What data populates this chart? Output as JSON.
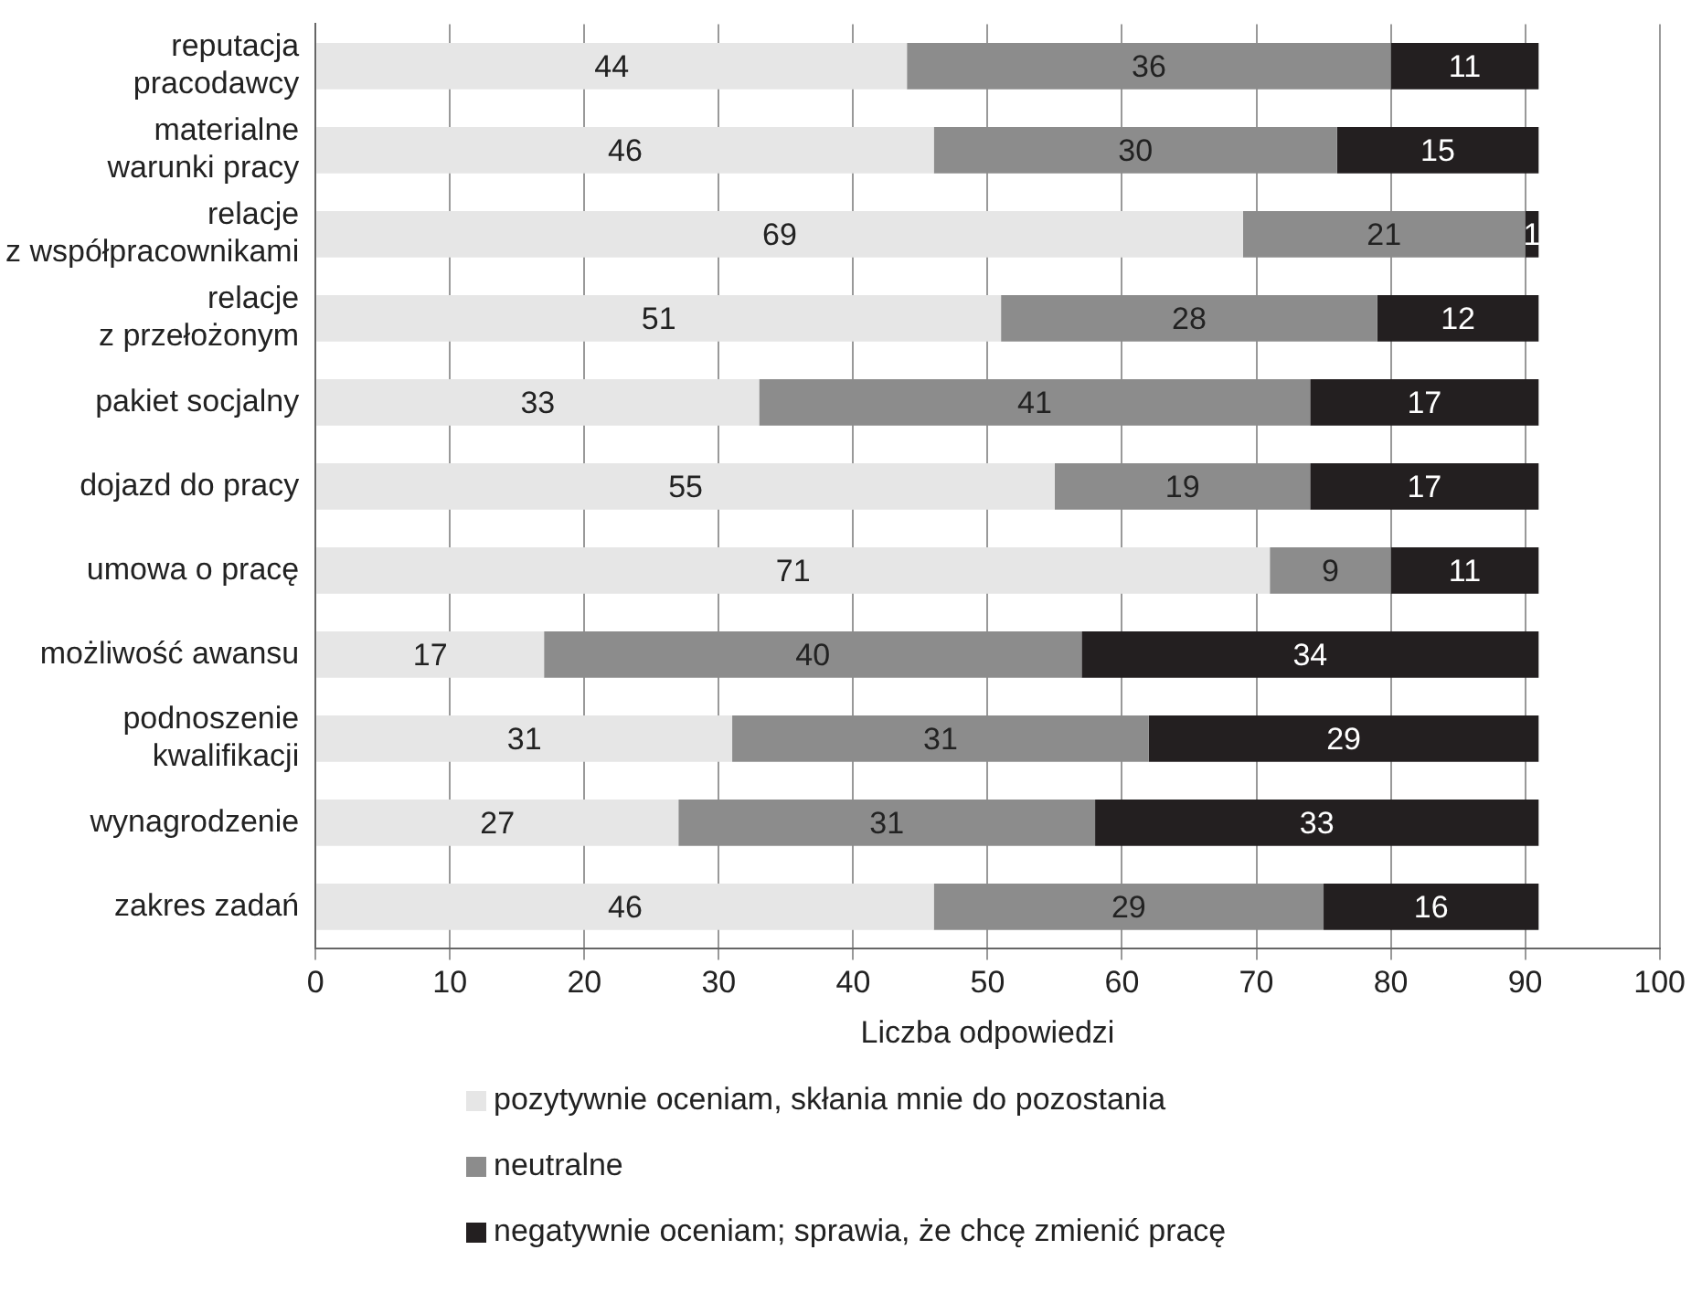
{
  "chart_data": {
    "type": "bar",
    "orientation": "horizontal",
    "stacked": true,
    "xlabel": "Liczba odpowiedzi",
    "categories": [
      "reputacja pracodawcy",
      "materialne warunki pracy",
      "relacje z współpracownikami",
      "relacje z przełożonym",
      "pakiet socjalny",
      "dojazd do pracy",
      "umowa o pracę",
      "możliwość awansu",
      "podnoszenie kwalifikacji",
      "wynagrodzenie",
      "zakres zadań"
    ],
    "series": [
      {
        "name": "pozytywnie oceniam, skłania mnie do pozostania",
        "color": "#e6e6e6",
        "values": [
          44,
          46,
          69,
          51,
          33,
          55,
          71,
          17,
          31,
          27,
          46
        ]
      },
      {
        "name": "neutralne",
        "color": "#8c8c8c",
        "values": [
          36,
          30,
          21,
          28,
          41,
          19,
          9,
          40,
          31,
          31,
          29
        ]
      },
      {
        "name": "negatywnie oceniam; sprawia, że chcę zmienić pracę",
        "color": "#231f20",
        "values": [
          11,
          15,
          1,
          12,
          17,
          17,
          11,
          34,
          29,
          33,
          16
        ]
      }
    ],
    "xlim": [
      0,
      100
    ],
    "xticks": [
      0,
      10,
      20,
      30,
      40,
      50,
      60,
      70,
      80,
      90,
      100
    ],
    "grid": "x",
    "legend": "bottom",
    "data_labels": true
  }
}
